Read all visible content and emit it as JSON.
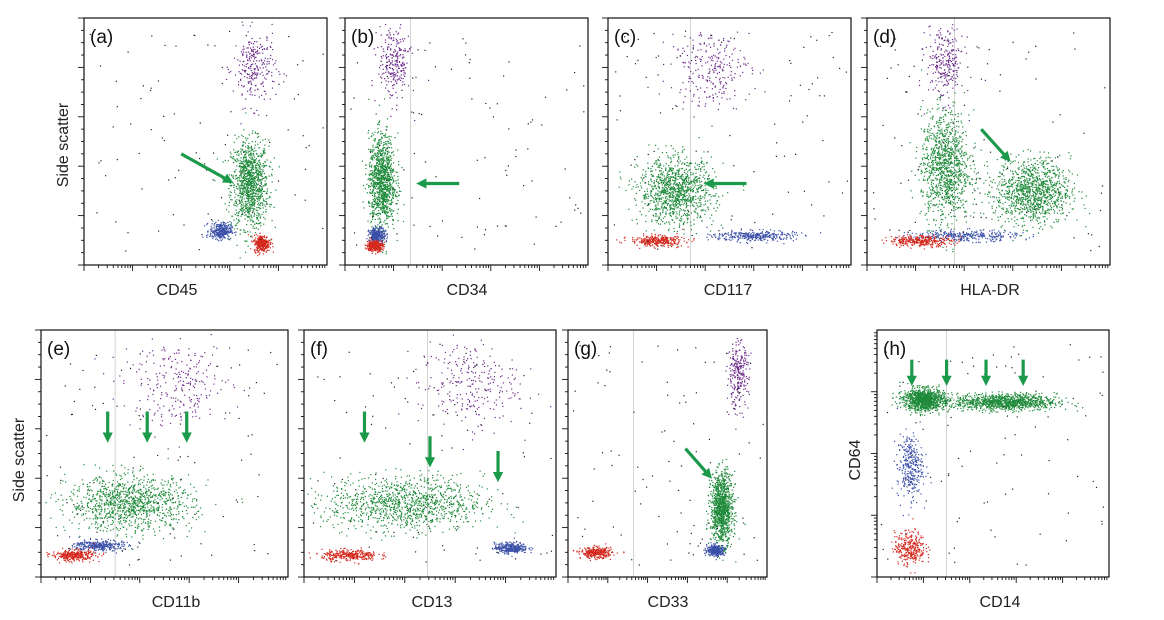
{
  "colors": {
    "myeloid_green": "#1e8a3a",
    "lymphocyte_red": "#d42a1f",
    "monocyte_blue": "#3a4fa8",
    "granulocyte_purple": "#6b2a8a",
    "debris_black": "#222222",
    "arrow_green": "#1a9a4a"
  },
  "chart_data": [
    {
      "type": "scatter",
      "label": "(a)",
      "xlabel": "CD45",
      "ylabel": "Side scatter",
      "xscale": "log",
      "grid": false,
      "populations": [
        {
          "color": "green",
          "x_center": 0.68,
          "y_center": 0.33,
          "x_spread": 0.07,
          "y_spread": 0.16
        },
        {
          "color": "purple",
          "x_center": 0.7,
          "y_center": 0.8,
          "x_spread": 0.08,
          "y_spread": 0.14
        },
        {
          "color": "blue",
          "x_center": 0.56,
          "y_center": 0.14,
          "x_spread": 0.04,
          "y_spread": 0.03
        },
        {
          "color": "red",
          "x_center": 0.73,
          "y_center": 0.09,
          "x_spread": 0.03,
          "y_spread": 0.03
        }
      ],
      "arrows": [
        {
          "direction": "right-down"
        }
      ]
    },
    {
      "type": "scatter",
      "label": "(b)",
      "xlabel": "CD34",
      "ylabel": "",
      "xscale": "log",
      "grid": true,
      "populations": [
        {
          "color": "green",
          "x_center": 0.15,
          "y_center": 0.34,
          "x_spread": 0.05,
          "y_spread": 0.17
        },
        {
          "color": "purple",
          "x_center": 0.2,
          "y_center": 0.82,
          "x_spread": 0.06,
          "y_spread": 0.14
        },
        {
          "color": "blue",
          "x_center": 0.13,
          "y_center": 0.12,
          "x_spread": 0.03,
          "y_spread": 0.03
        },
        {
          "color": "red",
          "x_center": 0.12,
          "y_center": 0.08,
          "x_spread": 0.03,
          "y_spread": 0.02
        }
      ],
      "arrows": [
        {
          "direction": "left"
        }
      ]
    },
    {
      "type": "scatter",
      "label": "(c)",
      "xlabel": "CD117",
      "ylabel": "",
      "xscale": "log",
      "grid": true,
      "populations": [
        {
          "color": "green",
          "x_center": 0.28,
          "y_center": 0.3,
          "x_spread": 0.14,
          "y_spread": 0.12
        },
        {
          "color": "purple",
          "x_center": 0.42,
          "y_center": 0.8,
          "x_spread": 0.15,
          "y_spread": 0.15
        },
        {
          "color": "blue",
          "x_center": 0.6,
          "y_center": 0.12,
          "x_spread": 0.15,
          "y_spread": 0.02
        },
        {
          "color": "red",
          "x_center": 0.2,
          "y_center": 0.1,
          "x_spread": 0.1,
          "y_spread": 0.02
        }
      ],
      "arrows": [
        {
          "direction": "left"
        }
      ]
    },
    {
      "type": "scatter",
      "label": "(d)",
      "xlabel": "HLA-DR",
      "ylabel": "",
      "xscale": "log",
      "grid": true,
      "populations": [
        {
          "color": "green",
          "x_center": 0.68,
          "y_center": 0.3,
          "x_spread": 0.14,
          "y_spread": 0.12
        },
        {
          "color": "green",
          "x_center": 0.32,
          "y_center": 0.4,
          "x_spread": 0.09,
          "y_spread": 0.2
        },
        {
          "color": "purple",
          "x_center": 0.32,
          "y_center": 0.82,
          "x_spread": 0.07,
          "y_spread": 0.14
        },
        {
          "color": "blue",
          "x_center": 0.4,
          "y_center": 0.12,
          "x_spread": 0.2,
          "y_spread": 0.02
        },
        {
          "color": "red",
          "x_center": 0.22,
          "y_center": 0.1,
          "x_spread": 0.12,
          "y_spread": 0.02
        }
      ],
      "arrows": [
        {
          "direction": "right-down"
        }
      ]
    },
    {
      "type": "scatter",
      "label": "(e)",
      "xlabel": "CD11b",
      "ylabel": "Side scatter",
      "xscale": "log",
      "grid": true,
      "populations": [
        {
          "color": "green",
          "x_center": 0.36,
          "y_center": 0.3,
          "x_spread": 0.23,
          "y_spread": 0.1
        },
        {
          "color": "purple",
          "x_center": 0.55,
          "y_center": 0.78,
          "x_spread": 0.2,
          "y_spread": 0.16
        },
        {
          "color": "blue",
          "x_center": 0.23,
          "y_center": 0.13,
          "x_spread": 0.09,
          "y_spread": 0.02
        },
        {
          "color": "red",
          "x_center": 0.13,
          "y_center": 0.09,
          "x_spread": 0.08,
          "y_spread": 0.02
        }
      ],
      "arrows": [
        {
          "direction": "down"
        },
        {
          "direction": "down"
        },
        {
          "direction": "down"
        }
      ]
    },
    {
      "type": "scatter",
      "label": "(f)",
      "xlabel": "CD13",
      "ylabel": "",
      "xscale": "log",
      "grid": true,
      "populations": [
        {
          "color": "green",
          "x_center": 0.4,
          "y_center": 0.3,
          "x_spread": 0.28,
          "y_spread": 0.1
        },
        {
          "color": "purple",
          "x_center": 0.65,
          "y_center": 0.78,
          "x_spread": 0.18,
          "y_spread": 0.16
        },
        {
          "color": "blue",
          "x_center": 0.82,
          "y_center": 0.12,
          "x_spread": 0.06,
          "y_spread": 0.02
        },
        {
          "color": "red",
          "x_center": 0.18,
          "y_center": 0.09,
          "x_spread": 0.1,
          "y_spread": 0.02
        }
      ],
      "arrows": [
        {
          "direction": "down"
        },
        {
          "direction": "down"
        },
        {
          "direction": "down"
        }
      ]
    },
    {
      "type": "scatter",
      "label": "(g)",
      "xlabel": "CD33",
      "ylabel": "",
      "xscale": "log",
      "grid": true,
      "populations": [
        {
          "color": "green",
          "x_center": 0.77,
          "y_center": 0.28,
          "x_spread": 0.05,
          "y_spread": 0.13
        },
        {
          "color": "purple",
          "x_center": 0.85,
          "y_center": 0.82,
          "x_spread": 0.05,
          "y_spread": 0.12
        },
        {
          "color": "blue",
          "x_center": 0.74,
          "y_center": 0.11,
          "x_spread": 0.04,
          "y_spread": 0.02
        },
        {
          "color": "red",
          "x_center": 0.14,
          "y_center": 0.1,
          "x_spread": 0.07,
          "y_spread": 0.02
        }
      ],
      "arrows": [
        {
          "direction": "right-down"
        }
      ]
    },
    {
      "type": "scatter",
      "label": "(h)",
      "xlabel": "CD14",
      "ylabel": "CD64",
      "xscale": "log",
      "yscale": "log",
      "grid": true,
      "populations": [
        {
          "color": "green",
          "x_center": 0.2,
          "y_center": 0.72,
          "x_spread": 0.08,
          "y_spread": 0.04
        },
        {
          "color": "green",
          "x_center": 0.55,
          "y_center": 0.71,
          "x_spread": 0.2,
          "y_spread": 0.03
        },
        {
          "color": "blue",
          "x_center": 0.14,
          "y_center": 0.45,
          "x_spread": 0.05,
          "y_spread": 0.12
        },
        {
          "color": "red",
          "x_center": 0.14,
          "y_center": 0.12,
          "x_spread": 0.06,
          "y_spread": 0.06
        }
      ],
      "arrows": [
        {
          "direction": "down"
        },
        {
          "direction": "down"
        },
        {
          "direction": "down"
        },
        {
          "direction": "down"
        }
      ]
    }
  ]
}
